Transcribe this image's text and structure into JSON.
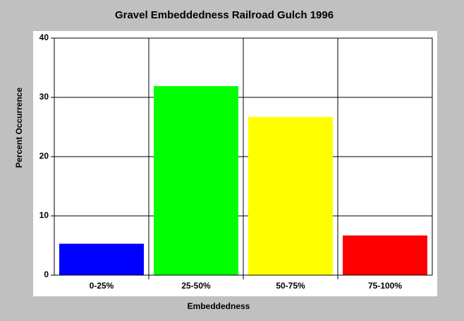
{
  "chart_data": {
    "type": "bar",
    "title": "Gravel Embeddedness Railroad Gulch 1996",
    "x_label": "Embeddedness",
    "y_label": "Percent Occurrence",
    "categories": [
      "0-25%",
      "25-50%",
      "50-75%",
      "75-100%"
    ],
    "values": [
      5.3,
      31.9,
      26.7,
      6.7
    ],
    "colors": [
      "#0000ff",
      "#00ff00",
      "#ffff00",
      "#ff0000"
    ],
    "ylim": [
      0,
      40
    ],
    "yticks": [
      0,
      10,
      20,
      30,
      40
    ],
    "grid": true
  }
}
